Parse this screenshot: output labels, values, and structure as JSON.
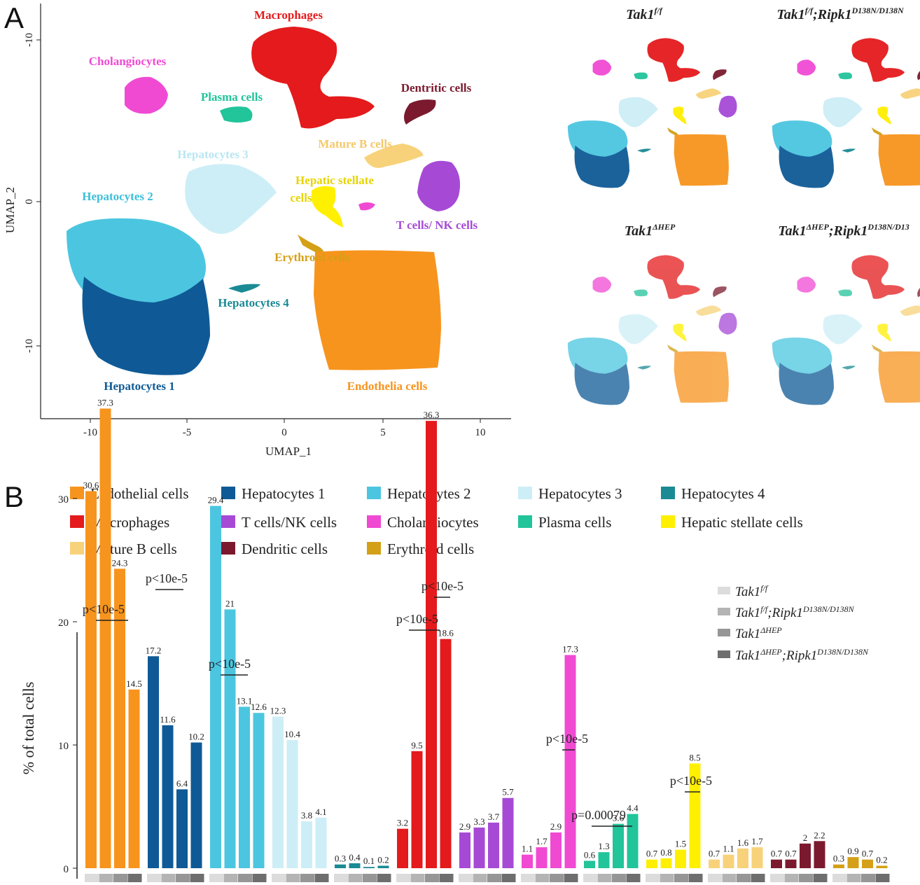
{
  "panel_a": {
    "letter": "A",
    "xlabel": "UMAP_1",
    "ylabel": "UMAP_2",
    "xticks": [
      "-10",
      "-5",
      "0",
      "5",
      "10"
    ],
    "yticks": [
      "-10",
      "0",
      "-10"
    ],
    "clusters": [
      {
        "label": "Macrophages",
        "color": "#e41a1c"
      },
      {
        "label": "Cholangiocytes",
        "color": "#f04ad3"
      },
      {
        "label": "Plasma cells",
        "color": "#22c49a"
      },
      {
        "label": "Dentritic cells",
        "color": "#7b1a2e"
      },
      {
        "label": "Hepatocytes 3",
        "color": "#cdeef6"
      },
      {
        "label": "Mature B cells",
        "color": "#f8d27a"
      },
      {
        "label": "Hepatic stellate cells",
        "color": "#ffef00"
      },
      {
        "label": "Hepatocytes 2",
        "color": "#4cc6e0"
      },
      {
        "label": "T cells/ NK cells",
        "color": "#a64ad6"
      },
      {
        "label": "Erythroid cells",
        "color": "#d4a017"
      },
      {
        "label": "Hepatocytes 4",
        "color": "#1a8a94"
      },
      {
        "label": "Hepatocytes 1",
        "color": "#0f5a96"
      },
      {
        "label": "Endothelia cells",
        "color": "#f7941d"
      }
    ],
    "small_titles": [
      "Tak1f/f",
      "Tak1f/f;Ripk1D138N/D138N",
      "Tak1ΔHEP",
      "Tak1ΔHEP;Ripk1D138N/D13"
    ]
  },
  "panel_b": {
    "letter": "B",
    "legend": [
      {
        "label": "Endothelial cells",
        "color": "#f7941d"
      },
      {
        "label": "Hepatocytes 1",
        "color": "#0f5a96"
      },
      {
        "label": "Hepatocytes 2",
        "color": "#4cc6e0"
      },
      {
        "label": "Hepatocytes 3",
        "color": "#cdeef6"
      },
      {
        "label": "Hepatocytes 4",
        "color": "#1a8a94"
      },
      {
        "label": "Macrophages",
        "color": "#e41a1c"
      },
      {
        "label": "T cells/NK cells",
        "color": "#a64ad6"
      },
      {
        "label": "Cholangiocytes",
        "color": "#f04ad3"
      },
      {
        "label": "Plasma cells",
        "color": "#22c49a"
      },
      {
        "label": "Hepatic stellate cells",
        "color": "#ffef00"
      },
      {
        "label": "Mature B cells",
        "color": "#f8d27a"
      },
      {
        "label": "Dendritic cells",
        "color": "#7b1a2e"
      },
      {
        "label": "Erythroid cells",
        "color": "#d4a017"
      }
    ],
    "conditions": [
      {
        "label": "Tak1f/f",
        "color": "#dcdcdc"
      },
      {
        "label": "Tak1f/f;Ripk1D138N/D138N",
        "color": "#b4b4b4"
      },
      {
        "label": "Tak1ΔHEP",
        "color": "#969696"
      },
      {
        "label": "Tak1ΔHEP;Ripk1D138N/D138N",
        "color": "#6e6e6e"
      }
    ],
    "p_labels": [
      "p<10e-5",
      "p<10e-5",
      "p<10e-5",
      "p<10e-5",
      "p<10e-5",
      "p<10e-5",
      "p=0.00079",
      "p<10e-5"
    ]
  },
  "chart_data": {
    "type": "bar",
    "ylabel": "% of total cells",
    "ylim": [
      0,
      40
    ],
    "yticks": [
      0,
      10,
      20,
      30
    ],
    "series_names": [
      "Tak1f/f",
      "Tak1f/f;Ripk1D138N/D138N",
      "Tak1ΔHEP",
      "Tak1ΔHEP;Ripk1D138N/D138N"
    ],
    "groups": [
      {
        "category": "Endothelial cells",
        "values": [
          30.6,
          37.3,
          24.3,
          14.5
        ],
        "labels": [
          "30.6",
          "37.3",
          "24.3",
          "14.5"
        ]
      },
      {
        "category": "Hepatocytes 1",
        "values": [
          17.2,
          11.6,
          6.4,
          10.2
        ],
        "labels": [
          "17.2",
          "11.6",
          "6.4",
          "10.2"
        ]
      },
      {
        "category": "Hepatocytes 2",
        "values": [
          29.4,
          21,
          13.1,
          12.6
        ],
        "labels": [
          "29.4",
          "21",
          "13.1",
          "12.6"
        ]
      },
      {
        "category": "Hepatocytes 3",
        "values": [
          12.3,
          10.4,
          3.8,
          4.1
        ],
        "labels": [
          "12.3",
          "10.4",
          "3.8",
          "4.1"
        ]
      },
      {
        "category": "Hepatocytes 4",
        "values": [
          0.3,
          0.4,
          0.1,
          0.2
        ],
        "labels": [
          "0.3",
          "0.4",
          "0.1",
          "0.2"
        ]
      },
      {
        "category": "Macrophages",
        "values": [
          3.2,
          9.5,
          36.3,
          18.6
        ],
        "labels": [
          "3.2",
          "9.5",
          "36.3",
          "18.6"
        ]
      },
      {
        "category": "T cells/NK cells",
        "values": [
          2.9,
          3.3,
          3.7,
          5.7
        ],
        "labels": [
          "2.9",
          "3.3",
          "3.7",
          "5.7"
        ]
      },
      {
        "category": "Cholangiocytes",
        "values": [
          1.1,
          1.7,
          2.9,
          17.3
        ],
        "labels": [
          "1.1",
          "1.7",
          "2.9",
          "17.3"
        ]
      },
      {
        "category": "Plasma cells",
        "values": [
          0.6,
          1.3,
          3.6,
          4.4
        ],
        "labels": [
          "0.6",
          "1.3",
          "3.6",
          "4.4"
        ]
      },
      {
        "category": "Hepatic stellate cells",
        "values": [
          0.7,
          0.8,
          1.5,
          8.5
        ],
        "labels": [
          "0.7",
          "0.8",
          "1.5",
          "8.5"
        ]
      },
      {
        "category": "Mature B cells",
        "values": [
          0.7,
          1.1,
          1.6,
          1.7
        ],
        "labels": [
          "0.7",
          "1.1",
          "1.6",
          "1.7"
        ]
      },
      {
        "category": "Dendritic cells",
        "values": [
          0.7,
          0.7,
          2,
          2.2
        ],
        "labels": [
          "0.7",
          "0.7",
          "2",
          "2.2"
        ]
      },
      {
        "category": "Erythroid cells",
        "values": [
          0.3,
          0.9,
          0.7,
          0.2
        ],
        "labels": [
          "0.3",
          "0.9",
          "0.7",
          "0.2"
        ]
      }
    ]
  }
}
